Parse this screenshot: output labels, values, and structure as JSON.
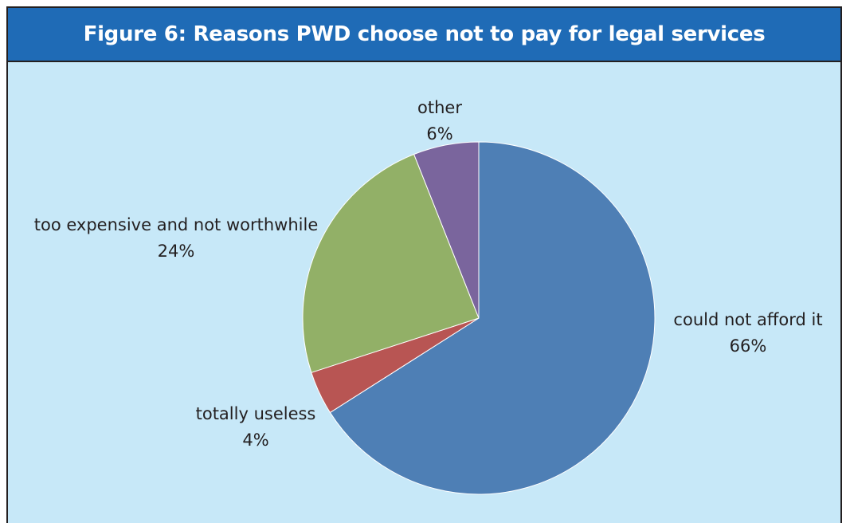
{
  "chart_data": {
    "type": "pie",
    "title": "Figure 6: Reasons PWD choose not to pay for legal services",
    "slices": [
      {
        "label": "could not afford it",
        "value": 66,
        "value_label": "66%",
        "color": "#4e7fb5"
      },
      {
        "label": "totally useless",
        "value": 4,
        "value_label": "4%",
        "color": "#b85553"
      },
      {
        "label": "too expensive and not worthwhile",
        "value": 24,
        "value_label": "24%",
        "color": "#92b067"
      },
      {
        "label": "other",
        "value": 6,
        "value_label": "6%",
        "color": "#7a659d"
      }
    ],
    "start_angle": "12 o'clock",
    "direction": "clockwise",
    "legend": "none",
    "background_color": "#c7e8f8",
    "title_bar_color": "#1f6bb6"
  }
}
